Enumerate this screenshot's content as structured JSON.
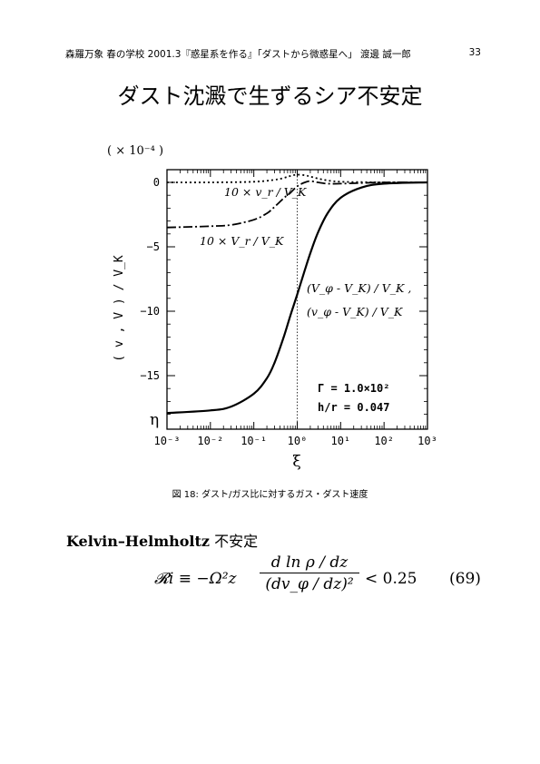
{
  "header": {
    "running": "森羅万象 春の学校 2001.3『惑星系を作る』「ダストから微惑星へ」 渡邊 誠一郎",
    "page": "33"
  },
  "title": "ダスト沈澱で生ずるシア不安定",
  "figure": {
    "caption": "図 18: ダスト/ガス比に対するガス・ダスト速度",
    "y_scale_label": "( × 10⁻⁴ )",
    "ylabel": "( v , V ) / V_K",
    "xlabel": "ξ",
    "eta_label": "η",
    "curve_labels": {
      "vr": "10 × v_r / V_K",
      "Vr": "10 × V_r / V_K",
      "Vphi": "(V_φ - V_K) / V_K ,",
      "vphi": "(v_φ - V_K) / V_K"
    },
    "params": [
      "Γ = 1.0×10²",
      "h/r = 0.047"
    ],
    "xticks": [
      "10⁻³",
      "10⁻²",
      "10⁻¹",
      "10⁰",
      "10¹",
      "10²",
      "10³"
    ],
    "yticks": [
      "0",
      "−5",
      "−10",
      "−15"
    ]
  },
  "chart_data": {
    "type": "line",
    "xscale": "log",
    "xlim": [
      0.001,
      1000
    ],
    "ylim": [
      -18.5,
      1
    ],
    "xlabel": "ξ",
    "ylabel": "( v , V ) / V_K",
    "grid": false,
    "annotations": [
      "Γ = 1.0×10²",
      "h/r = 0.047",
      "η"
    ],
    "series": [
      {
        "name": "(V_φ - V_K)/V_K , (v_φ - V_K)/V_K",
        "style": "solid",
        "x": [
          0.001,
          0.01,
          0.03,
          0.1,
          0.2,
          0.3,
          0.5,
          0.7,
          1,
          1.5,
          2,
          3,
          5,
          10,
          30,
          100,
          1000
        ],
        "y": [
          -17.9,
          -17.7,
          -17.4,
          -16.4,
          -15.2,
          -14.0,
          -11.9,
          -10.3,
          -8.7,
          -6.8,
          -5.5,
          -3.9,
          -2.4,
          -1.2,
          -0.4,
          -0.1,
          0
        ]
      },
      {
        "name": "10 × V_r / V_K",
        "style": "dashdot",
        "x": [
          0.001,
          0.01,
          0.03,
          0.1,
          0.2,
          0.3,
          0.5,
          0.7,
          1,
          1.5,
          2,
          3,
          5,
          10,
          30,
          100,
          1000
        ],
        "y": [
          -3.5,
          -3.4,
          -3.3,
          -2.9,
          -2.4,
          -1.9,
          -1.2,
          -0.8,
          -0.3,
          0,
          0.1,
          0.0,
          -0.1,
          -0.1,
          -0.05,
          0,
          0
        ]
      },
      {
        "name": "10 × v_r / V_K",
        "style": "dotted",
        "x": [
          0.001,
          0.01,
          0.1,
          0.3,
          0.5,
          0.7,
          1,
          1.5,
          2,
          3,
          5,
          10,
          30,
          100,
          1000
        ],
        "y": [
          0,
          0,
          0.05,
          0.2,
          0.35,
          0.5,
          0.6,
          0.55,
          0.45,
          0.3,
          0.15,
          0.05,
          0.02,
          0,
          0
        ]
      }
    ],
    "vline_x": 1
  },
  "section": {
    "title": "Kelvin–Helmholtz",
    "title_jp": " 不安定"
  },
  "equation": {
    "lhs": "𝓡i ≡ −Ω²z",
    "num": "d ln ρ / dz",
    "den": "(dv_φ / dz)²",
    "rhs": "< 0.25",
    "number": "(69)"
  }
}
